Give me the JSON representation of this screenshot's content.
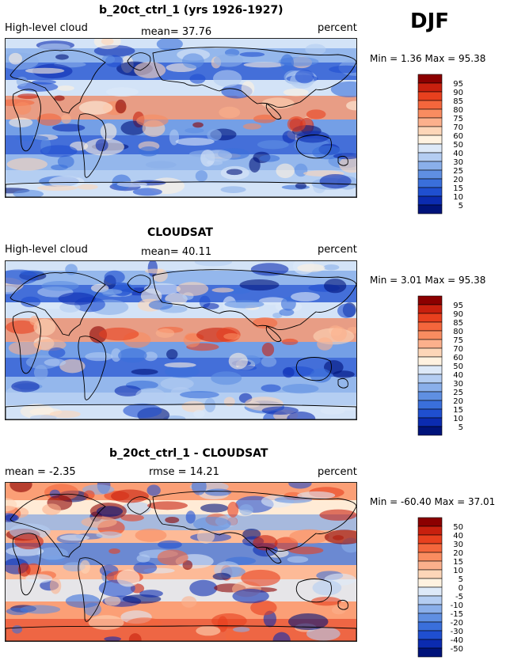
{
  "season": "DJF",
  "panels": [
    {
      "title": "b_20ct_ctrl_1 (yrs 1926-1927)",
      "left_text": "High-level cloud",
      "mid_text": "mean=  37.76",
      "units": "percent",
      "minmax": "Min =    1.36 Max =  95.38",
      "colorbar_labels": [
        "95",
        "90",
        "85",
        "80",
        "75",
        "70",
        "60",
        "50",
        "40",
        "30",
        "25",
        "20",
        "15",
        "10",
        "5"
      ],
      "colorbar_colors": [
        "#8b0000",
        "#c8200e",
        "#e8401e",
        "#f4663c",
        "#f98c60",
        "#fcb08c",
        "#fdd6b8",
        "#fff2e0",
        "#dde9f8",
        "#b4cdf2",
        "#8aafea",
        "#5f8fe2",
        "#3a6fdb",
        "#1f4fd0",
        "#0b2bb0",
        "#00137a"
      ]
    },
    {
      "title": "CLOUDSAT",
      "left_text": "High-level cloud",
      "mid_text": "mean=  40.11",
      "units": "percent",
      "minmax": "Min =    3.01 Max =  95.38",
      "colorbar_labels": [
        "95",
        "90",
        "85",
        "80",
        "75",
        "70",
        "60",
        "50",
        "40",
        "30",
        "25",
        "20",
        "15",
        "10",
        "5"
      ],
      "colorbar_colors": [
        "#8b0000",
        "#c8200e",
        "#e8401e",
        "#f4663c",
        "#f98c60",
        "#fcb08c",
        "#fdd6b8",
        "#fff2e0",
        "#dde9f8",
        "#b4cdf2",
        "#8aafea",
        "#5f8fe2",
        "#3a6fdb",
        "#1f4fd0",
        "#0b2bb0",
        "#00137a"
      ]
    },
    {
      "title": "b_20ct_ctrl_1 - CLOUDSAT",
      "left_text": "mean =  -2.35",
      "mid_text": "rmse =  14.21",
      "units": "percent",
      "minmax": "Min = -60.40 Max =  37.01",
      "colorbar_labels": [
        "50",
        "40",
        "30",
        "20",
        "15",
        "10",
        "5",
        "0",
        "-5",
        "-10",
        "-15",
        "-20",
        "-30",
        "-40",
        "-50"
      ],
      "colorbar_colors": [
        "#8b0000",
        "#c8200e",
        "#e8401e",
        "#f4663c",
        "#f98c60",
        "#fcb08c",
        "#fdd6b8",
        "#fff2e0",
        "#dde9f8",
        "#b4cdf2",
        "#8aafea",
        "#5f8fe2",
        "#3a6fdb",
        "#1f4fd0",
        "#0b2bb0",
        "#00137a"
      ]
    }
  ]
}
